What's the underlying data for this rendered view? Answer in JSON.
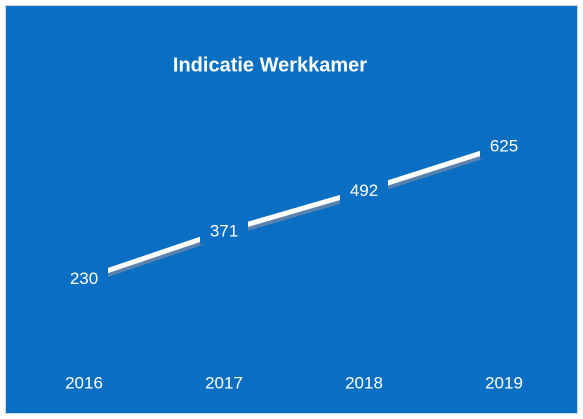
{
  "chart_data": {
    "type": "line",
    "title": "Indicatie Werkkamer",
    "categories": [
      "2016",
      "2017",
      "2018",
      "2019"
    ],
    "values": [
      230,
      371,
      492,
      625
    ],
    "color": "#ffffff",
    "background": "#0a6fc2",
    "ylim": [
      0,
      1000
    ]
  }
}
